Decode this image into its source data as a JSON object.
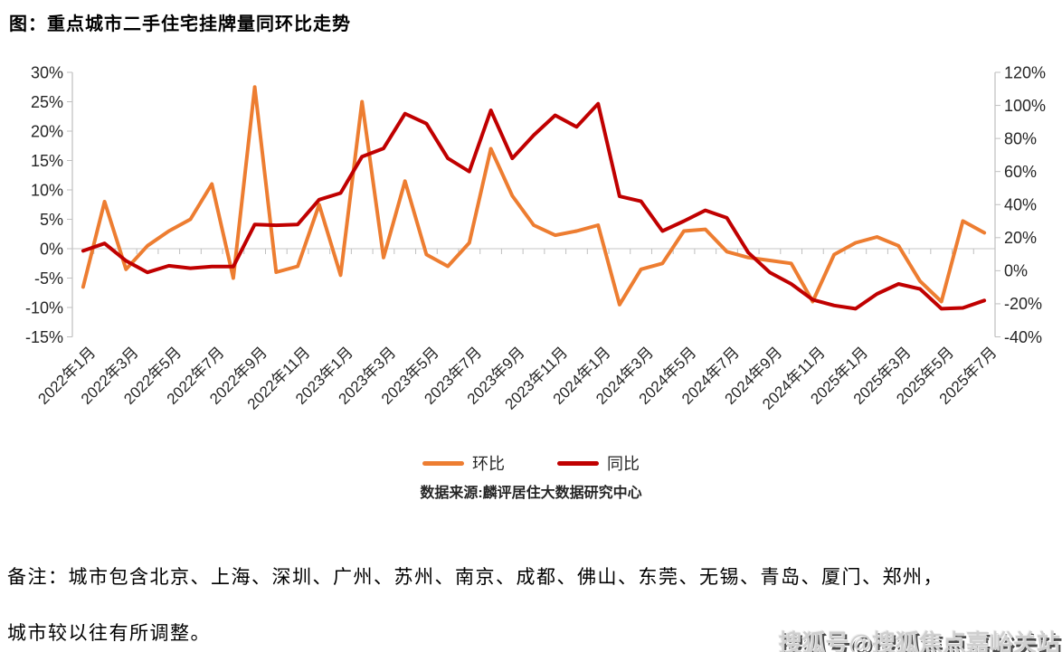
{
  "title": "图：重点城市二手住宅挂牌量同环比走势",
  "legend": {
    "mom": "环比",
    "yoy": "同比"
  },
  "source": "数据来源:麟评居住大数据研究中心",
  "notes": {
    "line1": "备注：城市包含北京、上海、深圳、广州、苏州、南京、成都、佛山、东莞、无锡、青岛、厦门、郑州，",
    "line2": "城市较以往有所调整。"
  },
  "watermark": "搜狐号@搜狐焦点嘉峪关站",
  "colors": {
    "mom_line": "#ED7D31",
    "yoy_line": "#C00000",
    "zero_gridline": "#D9D9D9",
    "axis_line": "#BFBFBF",
    "axis_text": "#262626"
  },
  "chart_data": {
    "type": "line",
    "title": "图：重点城市二手住宅挂牌量同环比走势",
    "x": [
      "2022年1月",
      "2022年2月",
      "2022年3月",
      "2022年4月",
      "2022年5月",
      "2022年6月",
      "2022年7月",
      "2022年8月",
      "2022年9月",
      "2022年10月",
      "2022年11月",
      "2022年12月",
      "2023年1月",
      "2023年2月",
      "2023年3月",
      "2023年4月",
      "2023年5月",
      "2023年6月",
      "2023年7月",
      "2023年8月",
      "2023年9月",
      "2023年10月",
      "2023年11月",
      "2023年12月",
      "2024年1月",
      "2024年2月",
      "2024年3月",
      "2024年4月",
      "2024年5月",
      "2024年6月",
      "2024年7月",
      "2024年8月",
      "2024年9月",
      "2024年10月",
      "2024年11月",
      "2024年12月",
      "2025年1月",
      "2025年2月",
      "2025年3月",
      "2025年4月",
      "2025年5月",
      "2025年6月",
      "2025年7月"
    ],
    "x_label_every": 2,
    "series": [
      {
        "id": "mom",
        "name": "环比",
        "axis": "left",
        "color": "#ED7D31",
        "values": [
          -6.5,
          8,
          -3.5,
          0.5,
          3,
          5,
          11,
          -5,
          27.5,
          -4,
          -3,
          7.5,
          -4.5,
          25,
          -1.5,
          11.5,
          -1,
          -3,
          1,
          17,
          9,
          4,
          2.3,
          3,
          4,
          -9.5,
          -3.5,
          -2.5,
          3,
          3.3,
          -0.5,
          -1.5,
          -2,
          -2.5,
          -9,
          -1,
          1,
          2,
          0.5,
          -5.5,
          -9,
          4.7,
          2.7
        ]
      },
      {
        "id": "yoy",
        "name": "同比",
        "axis": "right",
        "color": "#C00000",
        "values": [
          12,
          16.5,
          6,
          -1,
          3,
          1.5,
          2.5,
          2.5,
          28,
          27.5,
          28,
          43,
          47,
          69,
          74,
          95,
          89,
          68,
          60,
          97,
          68,
          82,
          94,
          87,
          101,
          45,
          42,
          24,
          30,
          36.5,
          32,
          11,
          -1,
          -8,
          -17.5,
          -21,
          -23,
          -14,
          -8,
          -11,
          -23,
          -22.5,
          -18
        ]
      }
    ],
    "left_axis": {
      "min": -15,
      "max": 30,
      "tick_step": 5,
      "tick_labels": [
        "30%",
        "25%",
        "20%",
        "15%",
        "10%",
        "5%",
        "0%",
        "-5%",
        "-10%",
        "-15%"
      ]
    },
    "right_axis": {
      "min": -40,
      "max": 120,
      "tick_step": 20,
      "tick_labels": [
        "120%",
        "100%",
        "80%",
        "60%",
        "40%",
        "20%",
        "0%",
        "-20%",
        "-40%"
      ]
    },
    "grid": "left-zero-line-only",
    "legend_position": "bottom-center",
    "legend_entries": [
      "环比",
      "同比"
    ]
  }
}
